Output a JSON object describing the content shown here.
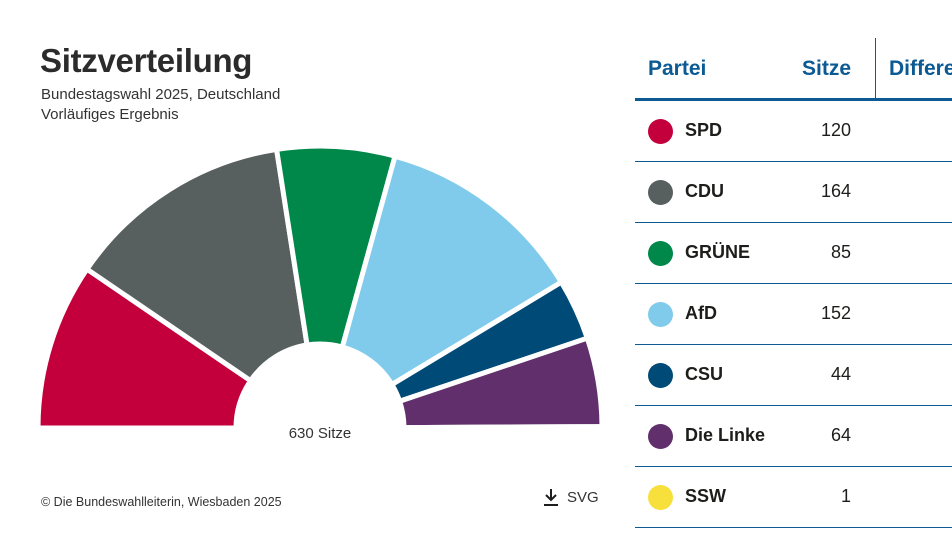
{
  "header": {
    "title": "Sitzverteilung",
    "subtitle1": "Bundestagswahl 2025, Deutschland",
    "subtitle2": "Vorläufiges Ergebnis"
  },
  "footer": {
    "credit": "© Die Bundeswahlleiterin, Wiesbaden 2025",
    "download_label": "SVG",
    "download_icon": "download-icon"
  },
  "table": {
    "headers": [
      "Partei",
      "Sitze",
      "Differe"
    ]
  },
  "chart_data": {
    "type": "pie",
    "variant": "parliament-half-donut",
    "total_label": "630 Sitze",
    "categories": [
      "SPD",
      "CDU",
      "GRÜNE",
      "AfD",
      "CSU",
      "Die Linke",
      "SSW"
    ],
    "values": [
      120,
      164,
      85,
      152,
      44,
      64,
      1
    ],
    "colors": [
      "#c3003c",
      "#58605f",
      "#00884a",
      "#80cbec",
      "#004a77",
      "#612f6b",
      "#f7e03c"
    ]
  }
}
